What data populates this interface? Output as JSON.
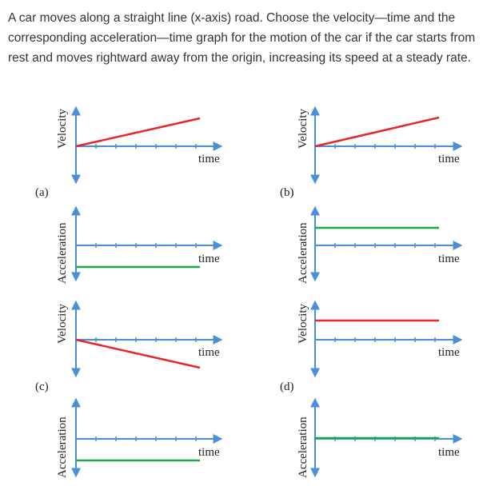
{
  "question": {
    "line1": "A car moves along a straight line (x-axis) road. Choose the velocity—time and the",
    "line2": "corresponding acceleration—time graph for the motion of the car if the car starts from",
    "line3": "rest and moves rightward away from the origin, increasing its speed at a steady rate."
  },
  "options": [
    {
      "label": "(a)",
      "velocity": "increasing-from-zero",
      "acceleration": "constant-negative"
    },
    {
      "label": "(b)",
      "velocity": "increasing-from-zero",
      "acceleration": "constant-positive"
    },
    {
      "label": "(c)",
      "velocity": "decreasing-from-zero",
      "acceleration": "constant-negative"
    },
    {
      "label": "(d)",
      "velocity": "constant-positive",
      "acceleration": "zero"
    }
  ],
  "axis_labels": {
    "velocity": "Velocity",
    "acceleration": "Acceleration",
    "time": "time"
  },
  "colors": {
    "axis": "#4a90d9",
    "velocity_line": "#e8262a",
    "acceleration_line": "#1aa84a",
    "text": "#333333"
  }
}
